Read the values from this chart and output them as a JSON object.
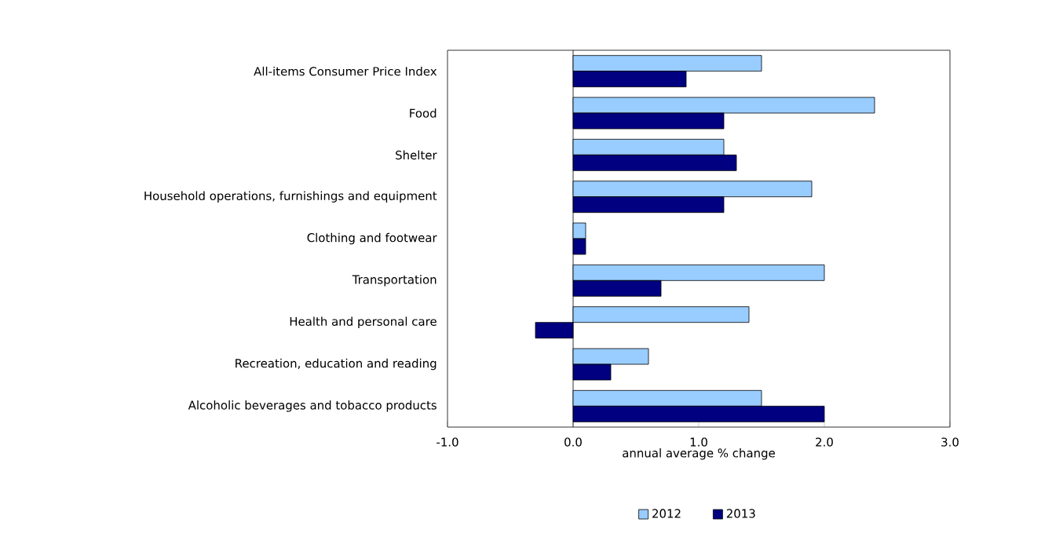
{
  "chart_data": {
    "type": "bar",
    "orientation": "horizontal",
    "xlabel": "annual average % change",
    "categories": [
      "All-items Consumer Price Index",
      "Food",
      "Shelter",
      "Household operations, furnishings and equipment",
      "Clothing and footwear",
      "Transportation",
      "Health and personal care",
      "Recreation, education and reading",
      "Alcoholic beverages and tobacco products"
    ],
    "series": [
      {
        "name": "2012",
        "color": "#99ccff",
        "values": [
          1.5,
          2.4,
          1.2,
          1.9,
          0.1,
          2.0,
          1.4,
          0.6,
          1.5
        ]
      },
      {
        "name": "2013",
        "color": "#000080",
        "values": [
          0.9,
          1.2,
          1.3,
          1.2,
          0.1,
          0.7,
          -0.3,
          0.3,
          2.0
        ]
      }
    ],
    "xlim": [
      -1.0,
      3.0
    ],
    "xticks": [
      {
        "value": -1.0,
        "label": "-1.0"
      },
      {
        "value": 0.0,
        "label": "0.0"
      },
      {
        "value": 1.0,
        "label": "1.0"
      },
      {
        "value": 2.0,
        "label": "2.0"
      },
      {
        "value": 3.0,
        "label": "3.0"
      }
    ],
    "legend": "bottom"
  }
}
